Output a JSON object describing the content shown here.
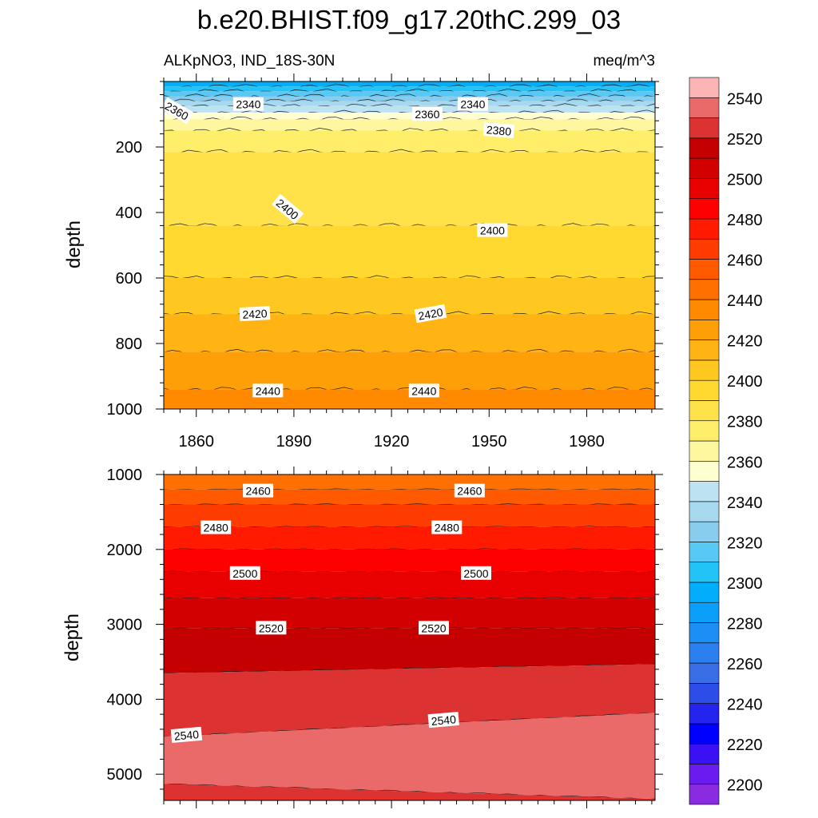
{
  "chart_data": {
    "type": "heatmap",
    "title": "b.e20.BHIST.f09_g17.20thC.299_03",
    "subtitle_left": "ALKpNO3, IND_18S-30N",
    "subtitle_right": "meq/m^3",
    "ylabel": "depth",
    "x_range": [
      1850,
      2001
    ],
    "x_ticks": [
      1860,
      1890,
      1920,
      1950,
      1980
    ],
    "panels": [
      {
        "name": "upper",
        "ylim": [
          0,
          1000
        ],
        "y_ticks": [
          200,
          400,
          600,
          800,
          1000
        ],
        "bands": [
          {
            "top": 0,
            "bottom": 15,
            "value": 2300
          },
          {
            "top": 15,
            "bottom": 30,
            "value": 2310
          },
          {
            "top": 30,
            "bottom": 45,
            "value": 2320
          },
          {
            "top": 45,
            "bottom": 60,
            "value": 2330
          },
          {
            "top": 60,
            "bottom": 75,
            "value": 2340
          },
          {
            "top": 75,
            "bottom": 95,
            "value": 2350
          },
          {
            "top": 95,
            "bottom": 115,
            "value": 2360
          },
          {
            "top": 115,
            "bottom": 150,
            "value": 2370
          },
          {
            "top": 150,
            "bottom": 215,
            "value": 2380
          },
          {
            "top": 215,
            "bottom": 440,
            "value": 2390
          },
          {
            "top": 440,
            "bottom": 600,
            "value": 2400
          },
          {
            "top": 600,
            "bottom": 710,
            "value": 2410
          },
          {
            "top": 710,
            "bottom": 825,
            "value": 2420
          },
          {
            "top": 825,
            "bottom": 940,
            "value": 2430
          },
          {
            "top": 940,
            "bottom": 1000,
            "value": 2440
          }
        ],
        "contour_labels": [
          {
            "text": "2340",
            "x": 1876,
            "depth": 70,
            "angle": 0
          },
          {
            "text": "2360",
            "x": 1854,
            "depth": 90,
            "angle": 30
          },
          {
            "text": "2340",
            "x": 1945,
            "depth": 70,
            "angle": 0
          },
          {
            "text": "2360",
            "x": 1931,
            "depth": 100,
            "angle": 0
          },
          {
            "text": "2380",
            "x": 1953,
            "depth": 150,
            "angle": 5
          },
          {
            "text": "2400",
            "x": 1888,
            "depth": 390,
            "angle": 40
          },
          {
            "text": "2400",
            "x": 1951,
            "depth": 455,
            "angle": 0
          },
          {
            "text": "2420",
            "x": 1878,
            "depth": 710,
            "angle": -3
          },
          {
            "text": "2420",
            "x": 1932,
            "depth": 710,
            "angle": -10
          },
          {
            "text": "2440",
            "x": 1882,
            "depth": 945,
            "angle": 0
          },
          {
            "text": "2440",
            "x": 1930,
            "depth": 945,
            "angle": 0
          }
        ]
      },
      {
        "name": "lower",
        "ylim": [
          1000,
          5350
        ],
        "y_ticks": [
          1000,
          2000,
          3000,
          4000,
          5000
        ],
        "bands": [
          {
            "top": 1000,
            "bottom": 1200,
            "value": 2450
          },
          {
            "top": 1200,
            "bottom": 1400,
            "value": 2460
          },
          {
            "top": 1400,
            "bottom": 1700,
            "value": 2470
          },
          {
            "top": 1700,
            "bottom": 2000,
            "value": 2480
          },
          {
            "top": 2000,
            "bottom": 2300,
            "value": 2490
          },
          {
            "top": 2300,
            "bottom": 2650,
            "value": 2500
          },
          {
            "top": 2650,
            "bottom": 3050,
            "value": 2510
          },
          {
            "top": 3050,
            "bottom": 3650,
            "bottom_end": 3530,
            "value": 2520
          },
          {
            "top": 3650,
            "top_end": 3530,
            "bottom": 4500,
            "bottom_end": 4180,
            "value": 2530
          },
          {
            "top": 4500,
            "top_end": 4180,
            "bottom": 5130,
            "bottom_end": 5330,
            "value": 2540
          },
          {
            "top": 5130,
            "top_end": 5330,
            "bottom": 5350,
            "value": 2530
          }
        ],
        "contour_labels": [
          {
            "text": "2460",
            "x": 1879,
            "depth": 1220,
            "angle": 0
          },
          {
            "text": "2460",
            "x": 1944,
            "depth": 1220,
            "angle": 0
          },
          {
            "text": "2480",
            "x": 1866,
            "depth": 1710,
            "angle": 0
          },
          {
            "text": "2480",
            "x": 1937,
            "depth": 1710,
            "angle": 0
          },
          {
            "text": "2500",
            "x": 1875,
            "depth": 2320,
            "angle": 0
          },
          {
            "text": "2500",
            "x": 1946,
            "depth": 2320,
            "angle": 0
          },
          {
            "text": "2520",
            "x": 1883,
            "depth": 3050,
            "angle": 0
          },
          {
            "text": "2520",
            "x": 1933,
            "depth": 3050,
            "angle": 0
          },
          {
            "text": "2540",
            "x": 1857,
            "depth": 4480,
            "angle": -5
          },
          {
            "text": "2540",
            "x": 1936,
            "depth": 4280,
            "angle": -5
          }
        ]
      }
    ],
    "colorbar": {
      "levels": [
        2200,
        2210,
        2220,
        2230,
        2240,
        2250,
        2260,
        2270,
        2280,
        2290,
        2300,
        2310,
        2320,
        2330,
        2340,
        2350,
        2360,
        2370,
        2380,
        2390,
        2400,
        2410,
        2420,
        2430,
        2440,
        2450,
        2460,
        2470,
        2480,
        2490,
        2500,
        2510,
        2520,
        2530,
        2540,
        2550
      ],
      "labels": [
        "2200",
        "2220",
        "2240",
        "2260",
        "2280",
        "2300",
        "2320",
        "2340",
        "2360",
        "2380",
        "2400",
        "2420",
        "2440",
        "2460",
        "2480",
        "2500",
        "2520",
        "2540"
      ],
      "colors": [
        "#8a2be2",
        "#6a1bf0",
        "#3c10f5",
        "#0000ff",
        "#2424ee",
        "#2d4de8",
        "#3a6ee6",
        "#2b7fef",
        "#1b8ff5",
        "#0c9ff9",
        "#00aef9",
        "#22c4f8",
        "#58c8f4",
        "#88cdee",
        "#a6d8f0",
        "#bde3f3",
        "#ffffd0",
        "#fff7a0",
        "#ffee6a",
        "#ffe24a",
        "#ffd830",
        "#ffc820",
        "#ffb414",
        "#ff9f08",
        "#ff8a00",
        "#ff7000",
        "#ff5a00",
        "#ff3c00",
        "#ff1a00",
        "#ff0000",
        "#e80000",
        "#d20000",
        "#c40000",
        "#dc3232",
        "#ea6a6a",
        "#fcb4b4"
      ]
    }
  }
}
